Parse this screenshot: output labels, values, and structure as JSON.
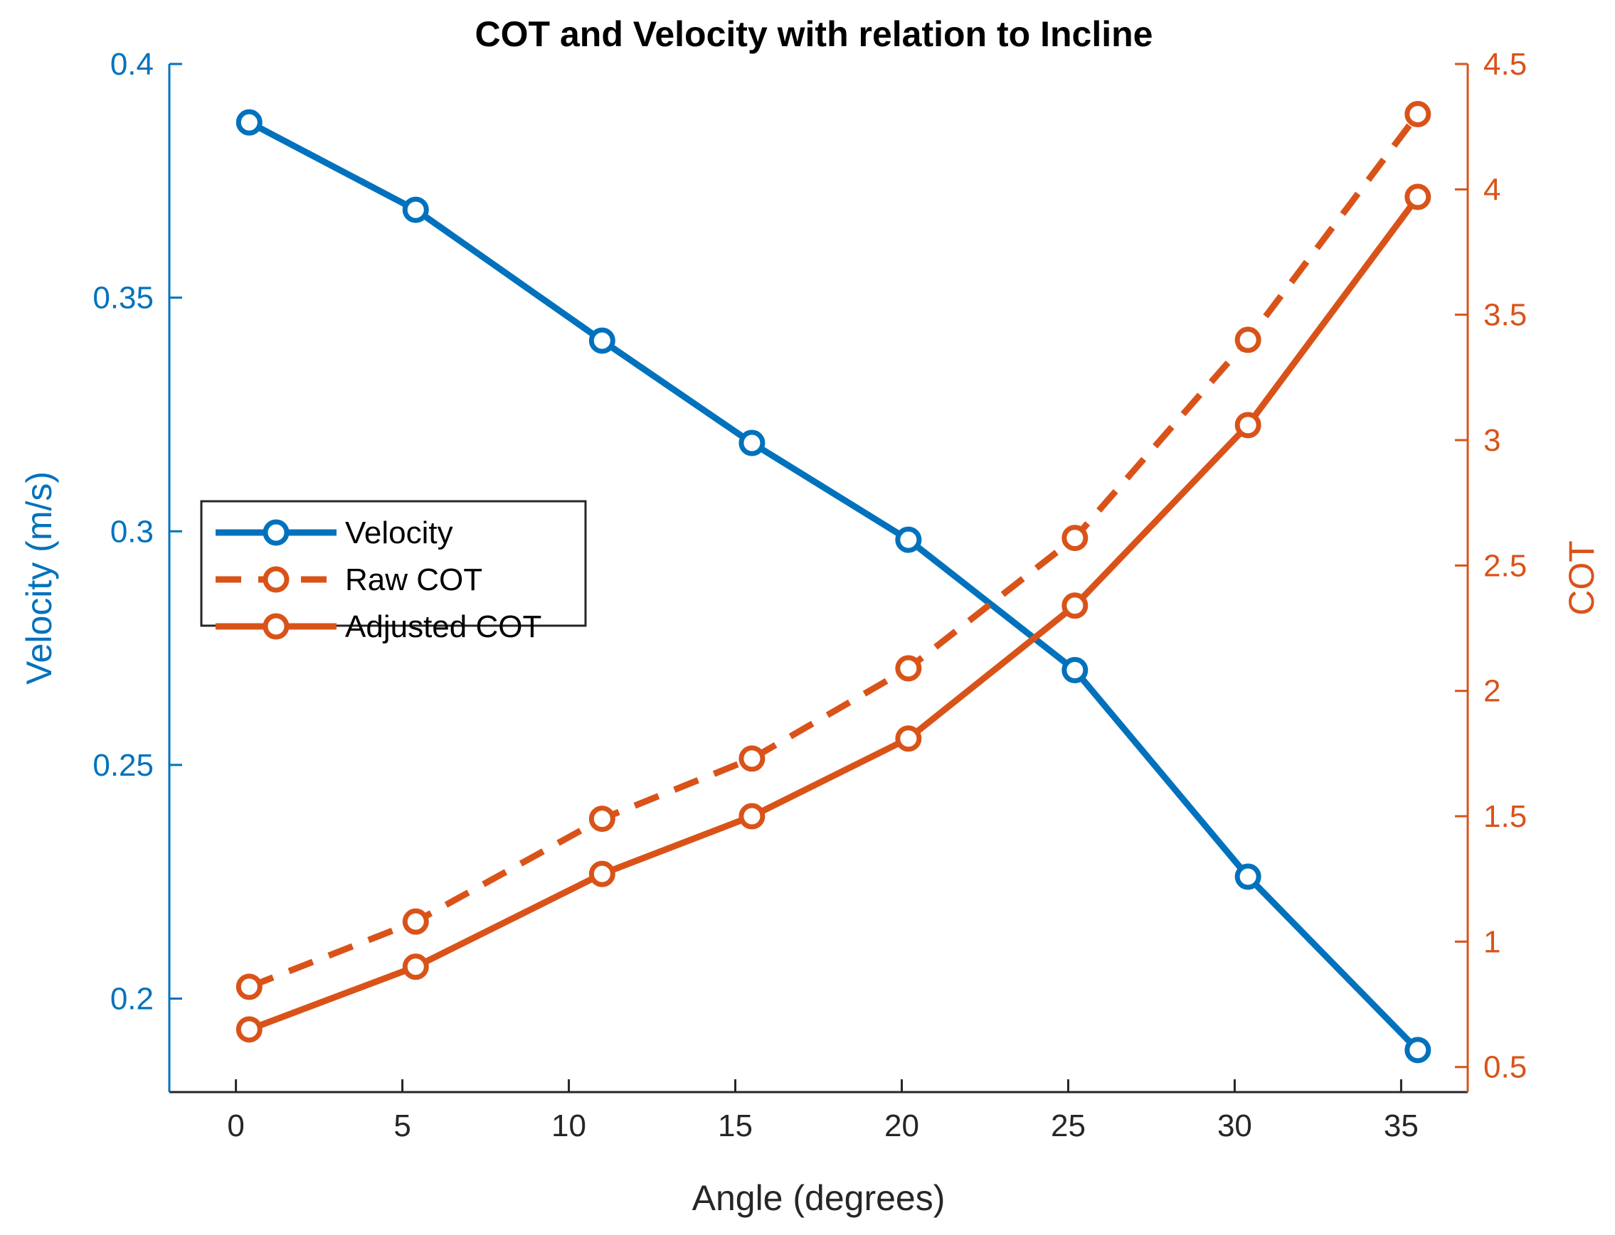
{
  "colors": {
    "velocity": "#0072BD",
    "cot": "#D95319",
    "bottom_axis": "#262626",
    "legend_border": "#262626"
  },
  "chart_data": {
    "type": "line",
    "title": "COT and Velocity with relation to Incline",
    "xlabel": "Angle (degrees)",
    "xlim": [
      -2,
      37
    ],
    "xticks": [
      0,
      5,
      10,
      15,
      20,
      25,
      30,
      35
    ],
    "xtick_labels": [
      "0",
      "5",
      "10",
      "15",
      "20",
      "25",
      "30",
      "35"
    ],
    "y_left": {
      "label": "Velocity (m/s)",
      "lim": [
        0.18,
        0.4
      ],
      "ticks": [
        0.2,
        0.25,
        0.3,
        0.35,
        0.4
      ],
      "tick_labels": [
        "0.2",
        "0.25",
        "0.3",
        "0.35",
        "0.4"
      ]
    },
    "y_right": {
      "label": "COT",
      "lim": [
        0.4,
        4.5
      ],
      "ticks": [
        0.5,
        1,
        1.5,
        2,
        2.5,
        3,
        3.5,
        4,
        4.5
      ],
      "tick_labels": [
        "0.5",
        "1",
        "1.5",
        "2",
        "2.5",
        "3",
        "3.5",
        "4",
        "4.5"
      ]
    },
    "legend_position": "left-middle",
    "series": [
      {
        "name": "Velocity",
        "axis": "left",
        "style": "solid",
        "x": [
          0.4,
          5.4,
          11,
          15.5,
          20.2,
          25.2,
          30.4,
          35.5
        ],
        "values": [
          0.3875,
          0.3688,
          0.3408,
          0.3189,
          0.2982,
          0.2703,
          0.2261,
          0.189
        ]
      },
      {
        "name": "Raw COT",
        "axis": "right",
        "style": "dashed",
        "x": [
          0.4,
          5.4,
          11,
          15.5,
          20.2,
          25.2,
          30.4,
          35.5
        ],
        "values": [
          0.82,
          1.08,
          1.49,
          1.73,
          2.09,
          2.61,
          3.4,
          4.3
        ]
      },
      {
        "name": "Adjusted COT",
        "axis": "right",
        "style": "solid",
        "x": [
          0.4,
          5.4,
          11,
          15.5,
          20.2,
          25.2,
          30.4,
          35.5
        ],
        "values": [
          0.65,
          0.9,
          1.27,
          1.5,
          1.81,
          2.34,
          3.06,
          3.97
        ]
      }
    ]
  }
}
